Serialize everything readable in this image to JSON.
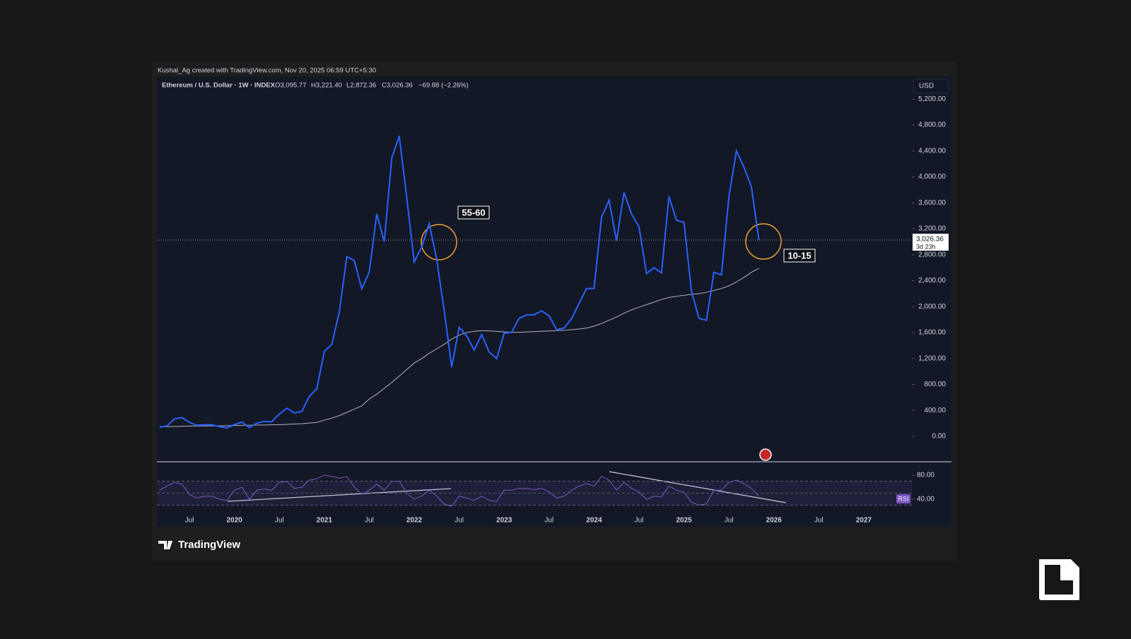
{
  "credit": "Kushal_Ag created with TradingView.com, Nov 20, 2025 06:59 UTC+5:30",
  "logo": "TradingView",
  "chart_data": {
    "type": "line",
    "symbol": "Ethereum / U.S. Dollar · 1W · INDEX",
    "ohlc": [
      "O3,095.77",
      "H3,221.40",
      "L2,872.36",
      "C3,026.36",
      "−69.88 (−2.26%)"
    ],
    "currency": "USD",
    "categories": [
      null,
      null,
      null,
      null,
      "Jul",
      null,
      null,
      null,
      null,
      null,
      "2020",
      null,
      null,
      null,
      null,
      null,
      "Jul",
      null,
      null,
      null,
      null,
      null,
      "2021",
      null,
      null,
      null,
      null,
      null,
      "Jul",
      null,
      null,
      null,
      null,
      null,
      "2022",
      null,
      null,
      null,
      null,
      null,
      "Jul",
      null,
      null,
      null,
      null,
      null,
      "2023",
      null,
      null,
      null,
      null,
      null,
      "Jul",
      null,
      null,
      null,
      null,
      null,
      "2024",
      null,
      null,
      null,
      null,
      null,
      "Jul",
      null,
      null,
      null,
      null,
      null,
      "2025",
      null,
      null,
      null,
      null,
      null,
      "Jul",
      null,
      null,
      null,
      null,
      null,
      "2026",
      null,
      null,
      null,
      null,
      null,
      "Jul",
      null,
      null,
      null,
      null,
      null,
      "2027",
      null,
      null,
      null,
      null,
      null
    ],
    "series": [
      {
        "name": "Ethereum / U.S. Dollar",
        "color": "#2962ff",
        "values": [
          140,
          160,
          270,
          290,
          215,
          170,
          180,
          180,
          150,
          130,
          180,
          220,
          135,
          205,
          230,
          225,
          345,
          435,
          360,
          385,
          615,
          735,
          1310,
          1420,
          1920,
          2770,
          2710,
          2275,
          2535,
          3430,
          3000,
          4290,
          4630,
          3680,
          2690,
          2920,
          3280,
          2730,
          1940,
          1070,
          1680,
          1550,
          1330,
          1570,
          1300,
          1200,
          1590,
          1605,
          1820,
          1870,
          1875,
          1935,
          1860,
          1645,
          1670,
          1815,
          2050,
          2280,
          2280,
          3380,
          3640,
          3015,
          3760,
          3430,
          3230,
          2510,
          2600,
          2520,
          3700,
          3330,
          3300,
          2240,
          1820,
          1790,
          2530,
          2490,
          3700,
          4400,
          4150,
          3850,
          3026.36,
          null,
          null,
          null,
          null,
          null,
          null,
          null,
          null,
          null,
          null,
          null,
          null,
          null,
          null,
          null,
          null,
          null,
          null,
          null
        ]
      },
      {
        "color": "#b2b5be",
        "values": [
          150,
          150,
          152,
          155,
          158,
          160,
          160,
          162,
          163,
          165,
          167,
          170,
          172,
          174,
          176,
          178,
          180,
          185,
          190,
          195,
          205,
          215,
          250,
          280,
          320,
          370,
          420,
          470,
          575,
          650,
          740,
          830,
          930,
          1030,
          1130,
          1200,
          1280,
          1350,
          1420,
          1500,
          1560,
          1600,
          1620,
          1630,
          1625,
          1620,
          1610,
          1605,
          1605,
          1610,
          1615,
          1620,
          1625,
          1630,
          1635,
          1645,
          1655,
          1670,
          1700,
          1740,
          1790,
          1840,
          1900,
          1950,
          1990,
          2030,
          2070,
          2110,
          2140,
          2160,
          2175,
          2190,
          2200,
          2220,
          2250,
          2280,
          2320,
          2380,
          2450,
          2530,
          2590,
          null,
          null,
          null,
          null,
          null,
          null,
          null,
          null,
          null,
          null,
          null,
          null,
          null,
          null,
          null,
          null,
          null,
          null,
          null
        ]
      }
    ],
    "ylim": [
      -370,
      5530
    ],
    "yticks": [
      {
        "value": 0,
        "label": "0.00"
      },
      {
        "value": 400,
        "label": "400.00"
      },
      {
        "value": 800,
        "label": "800.00"
      },
      {
        "value": 1200,
        "label": "1,200.00"
      },
      {
        "value": 1600,
        "label": "1,600.00"
      },
      {
        "value": 2000,
        "label": "2,000.00"
      },
      {
        "value": 2400,
        "label": "2,400.00"
      },
      {
        "value": 2800,
        "label": "2,800.00"
      },
      {
        "value": 3200,
        "label": "3,200.00"
      },
      {
        "value": 3600,
        "label": "3,600.00"
      },
      {
        "value": 4000,
        "label": "4,000.00"
      },
      {
        "value": 4400,
        "label": "4,400.00"
      },
      {
        "value": 4800,
        "label": "4,800.00"
      },
      {
        "value": 5200,
        "label": "5,200.00"
      }
    ],
    "last_price": {
      "value": 3026.36,
      "label": "3,026.36",
      "countdown": "3d 23h"
    },
    "annotations": [
      "55-60",
      "10-15"
    ],
    "rsi": {
      "name": "RSI",
      "color": "#7e57c2",
      "values": [
        55,
        62,
        68,
        65,
        48,
        42,
        45,
        45,
        40,
        38,
        55,
        60,
        40,
        55,
        57,
        55,
        68,
        70,
        58,
        60,
        72,
        74,
        80,
        78,
        75,
        78,
        60,
        48,
        55,
        65,
        55,
        70,
        70,
        50,
        40,
        45,
        55,
        45,
        32,
        28,
        45,
        42,
        38,
        45,
        38,
        36,
        55,
        55,
        58,
        58,
        56,
        58,
        52,
        42,
        45,
        55,
        62,
        66,
        62,
        78,
        72,
        55,
        68,
        58,
        52,
        40,
        45,
        44,
        62,
        55,
        52,
        35,
        30,
        32,
        55,
        55,
        68,
        72,
        66,
        58,
        45,
        null,
        null,
        null,
        null,
        null,
        null,
        null,
        null,
        null,
        null,
        null,
        null,
        null,
        null,
        null,
        null,
        null,
        null,
        null
      ],
      "ylim": [
        27,
        99
      ],
      "yticks": [
        {
          "value": 80,
          "label": "80.00"
        },
        {
          "value": 40,
          "label": "40.00"
        }
      ],
      "bands": [
        30,
        50,
        70
      ]
    }
  }
}
